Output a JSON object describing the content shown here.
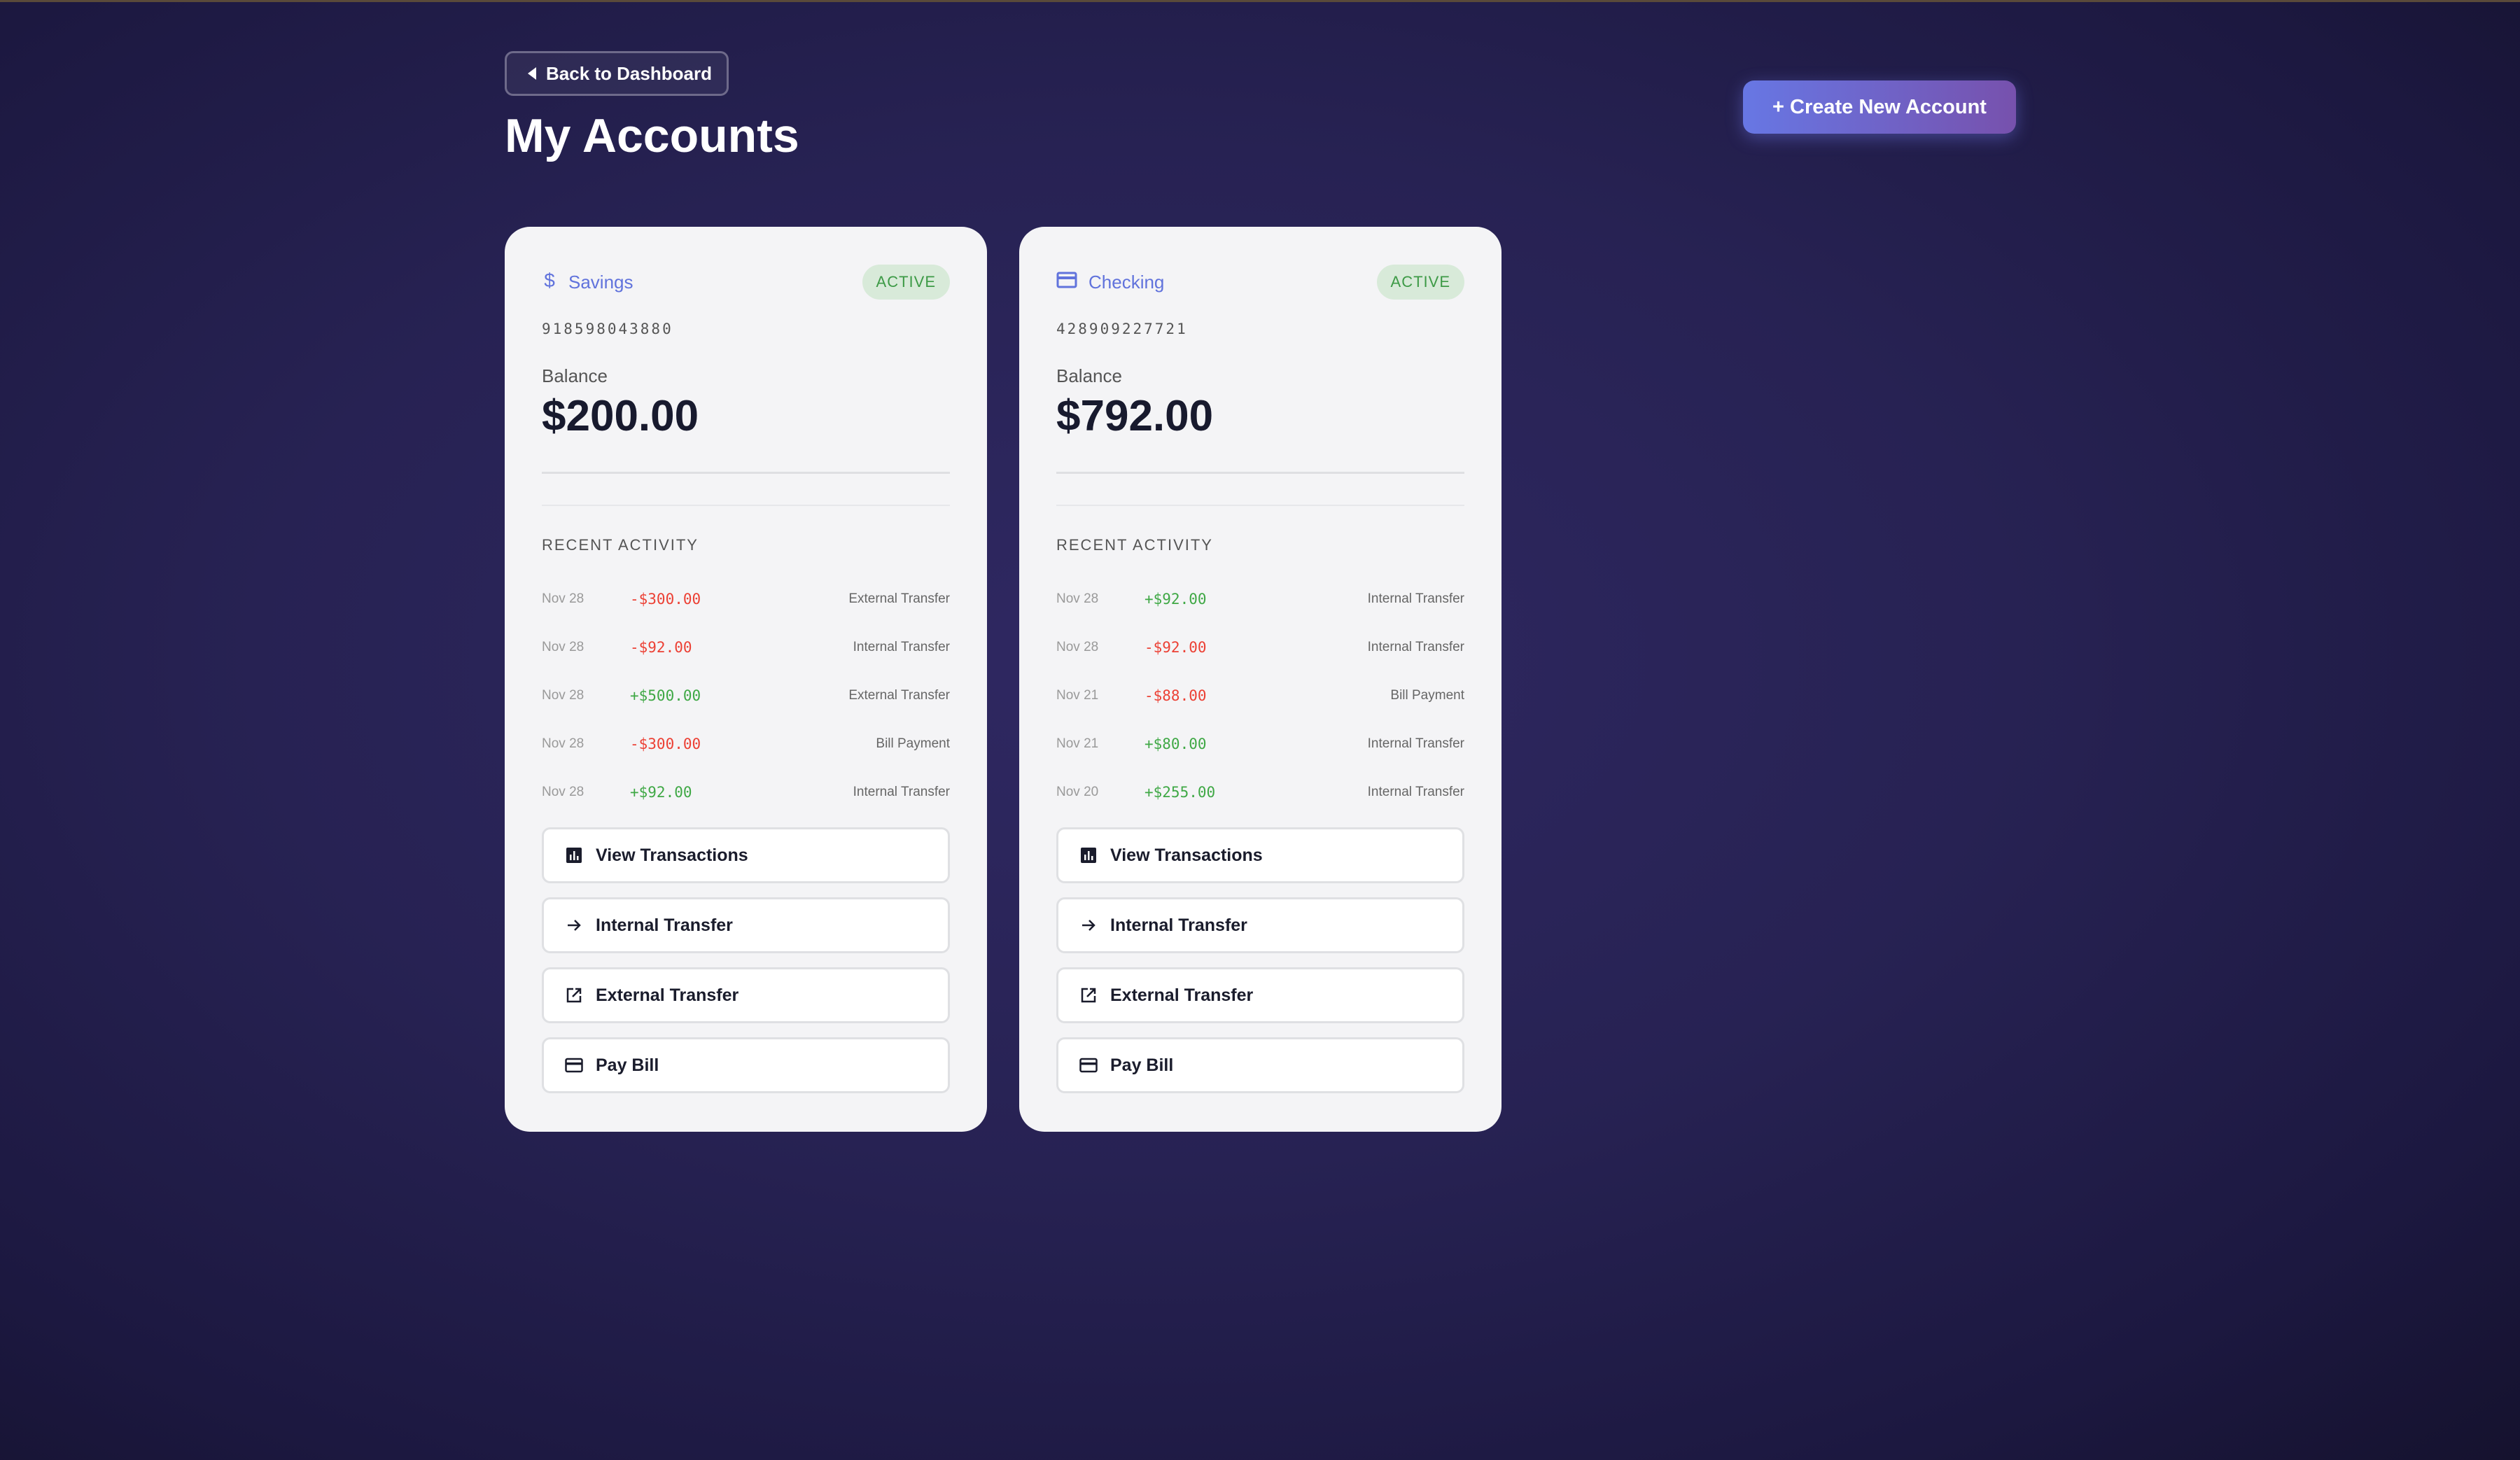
{
  "header": {
    "back_label": "Back to Dashboard",
    "title": "My Accounts",
    "create_label": "+ Create New Account"
  },
  "colors": {
    "accent": "#6173dc",
    "active_badge": "#3d9a46",
    "negative": "#ec4034",
    "positive": "#3fa845"
  },
  "accounts": [
    {
      "type": "Savings",
      "icon": "dollar-icon",
      "status": "ACTIVE",
      "number": "918598043880",
      "balance_label": "Balance",
      "balance": "$200.00",
      "recent_label": "RECENT ACTIVITY",
      "activity": [
        {
          "date": "Nov 28",
          "amount": "-$300.00",
          "sign": "neg",
          "desc": "External Transfer"
        },
        {
          "date": "Nov 28",
          "amount": "-$92.00",
          "sign": "neg",
          "desc": "Internal Transfer"
        },
        {
          "date": "Nov 28",
          "amount": "+$500.00",
          "sign": "pos",
          "desc": "External Transfer"
        },
        {
          "date": "Nov 28",
          "amount": "-$300.00",
          "sign": "neg",
          "desc": "Bill Payment"
        },
        {
          "date": "Nov 28",
          "amount": "+$92.00",
          "sign": "pos",
          "desc": "Internal Transfer"
        }
      ],
      "actions": [
        "View Transactions",
        "Internal Transfer",
        "External Transfer",
        "Pay Bill"
      ]
    },
    {
      "type": "Checking",
      "icon": "credit-card-icon",
      "status": "ACTIVE",
      "number": "428909227721",
      "balance_label": "Balance",
      "balance": "$792.00",
      "recent_label": "RECENT ACTIVITY",
      "activity": [
        {
          "date": "Nov 28",
          "amount": "+$92.00",
          "sign": "pos",
          "desc": "Internal Transfer"
        },
        {
          "date": "Nov 28",
          "amount": "-$92.00",
          "sign": "neg",
          "desc": "Internal Transfer"
        },
        {
          "date": "Nov 21",
          "amount": "-$88.00",
          "sign": "neg",
          "desc": "Bill Payment"
        },
        {
          "date": "Nov 21",
          "amount": "+$80.00",
          "sign": "pos",
          "desc": "Internal Transfer"
        },
        {
          "date": "Nov 20",
          "amount": "+$255.00",
          "sign": "pos",
          "desc": "Internal Transfer"
        }
      ],
      "actions": [
        "View Transactions",
        "Internal Transfer",
        "External Transfer",
        "Pay Bill"
      ]
    }
  ]
}
